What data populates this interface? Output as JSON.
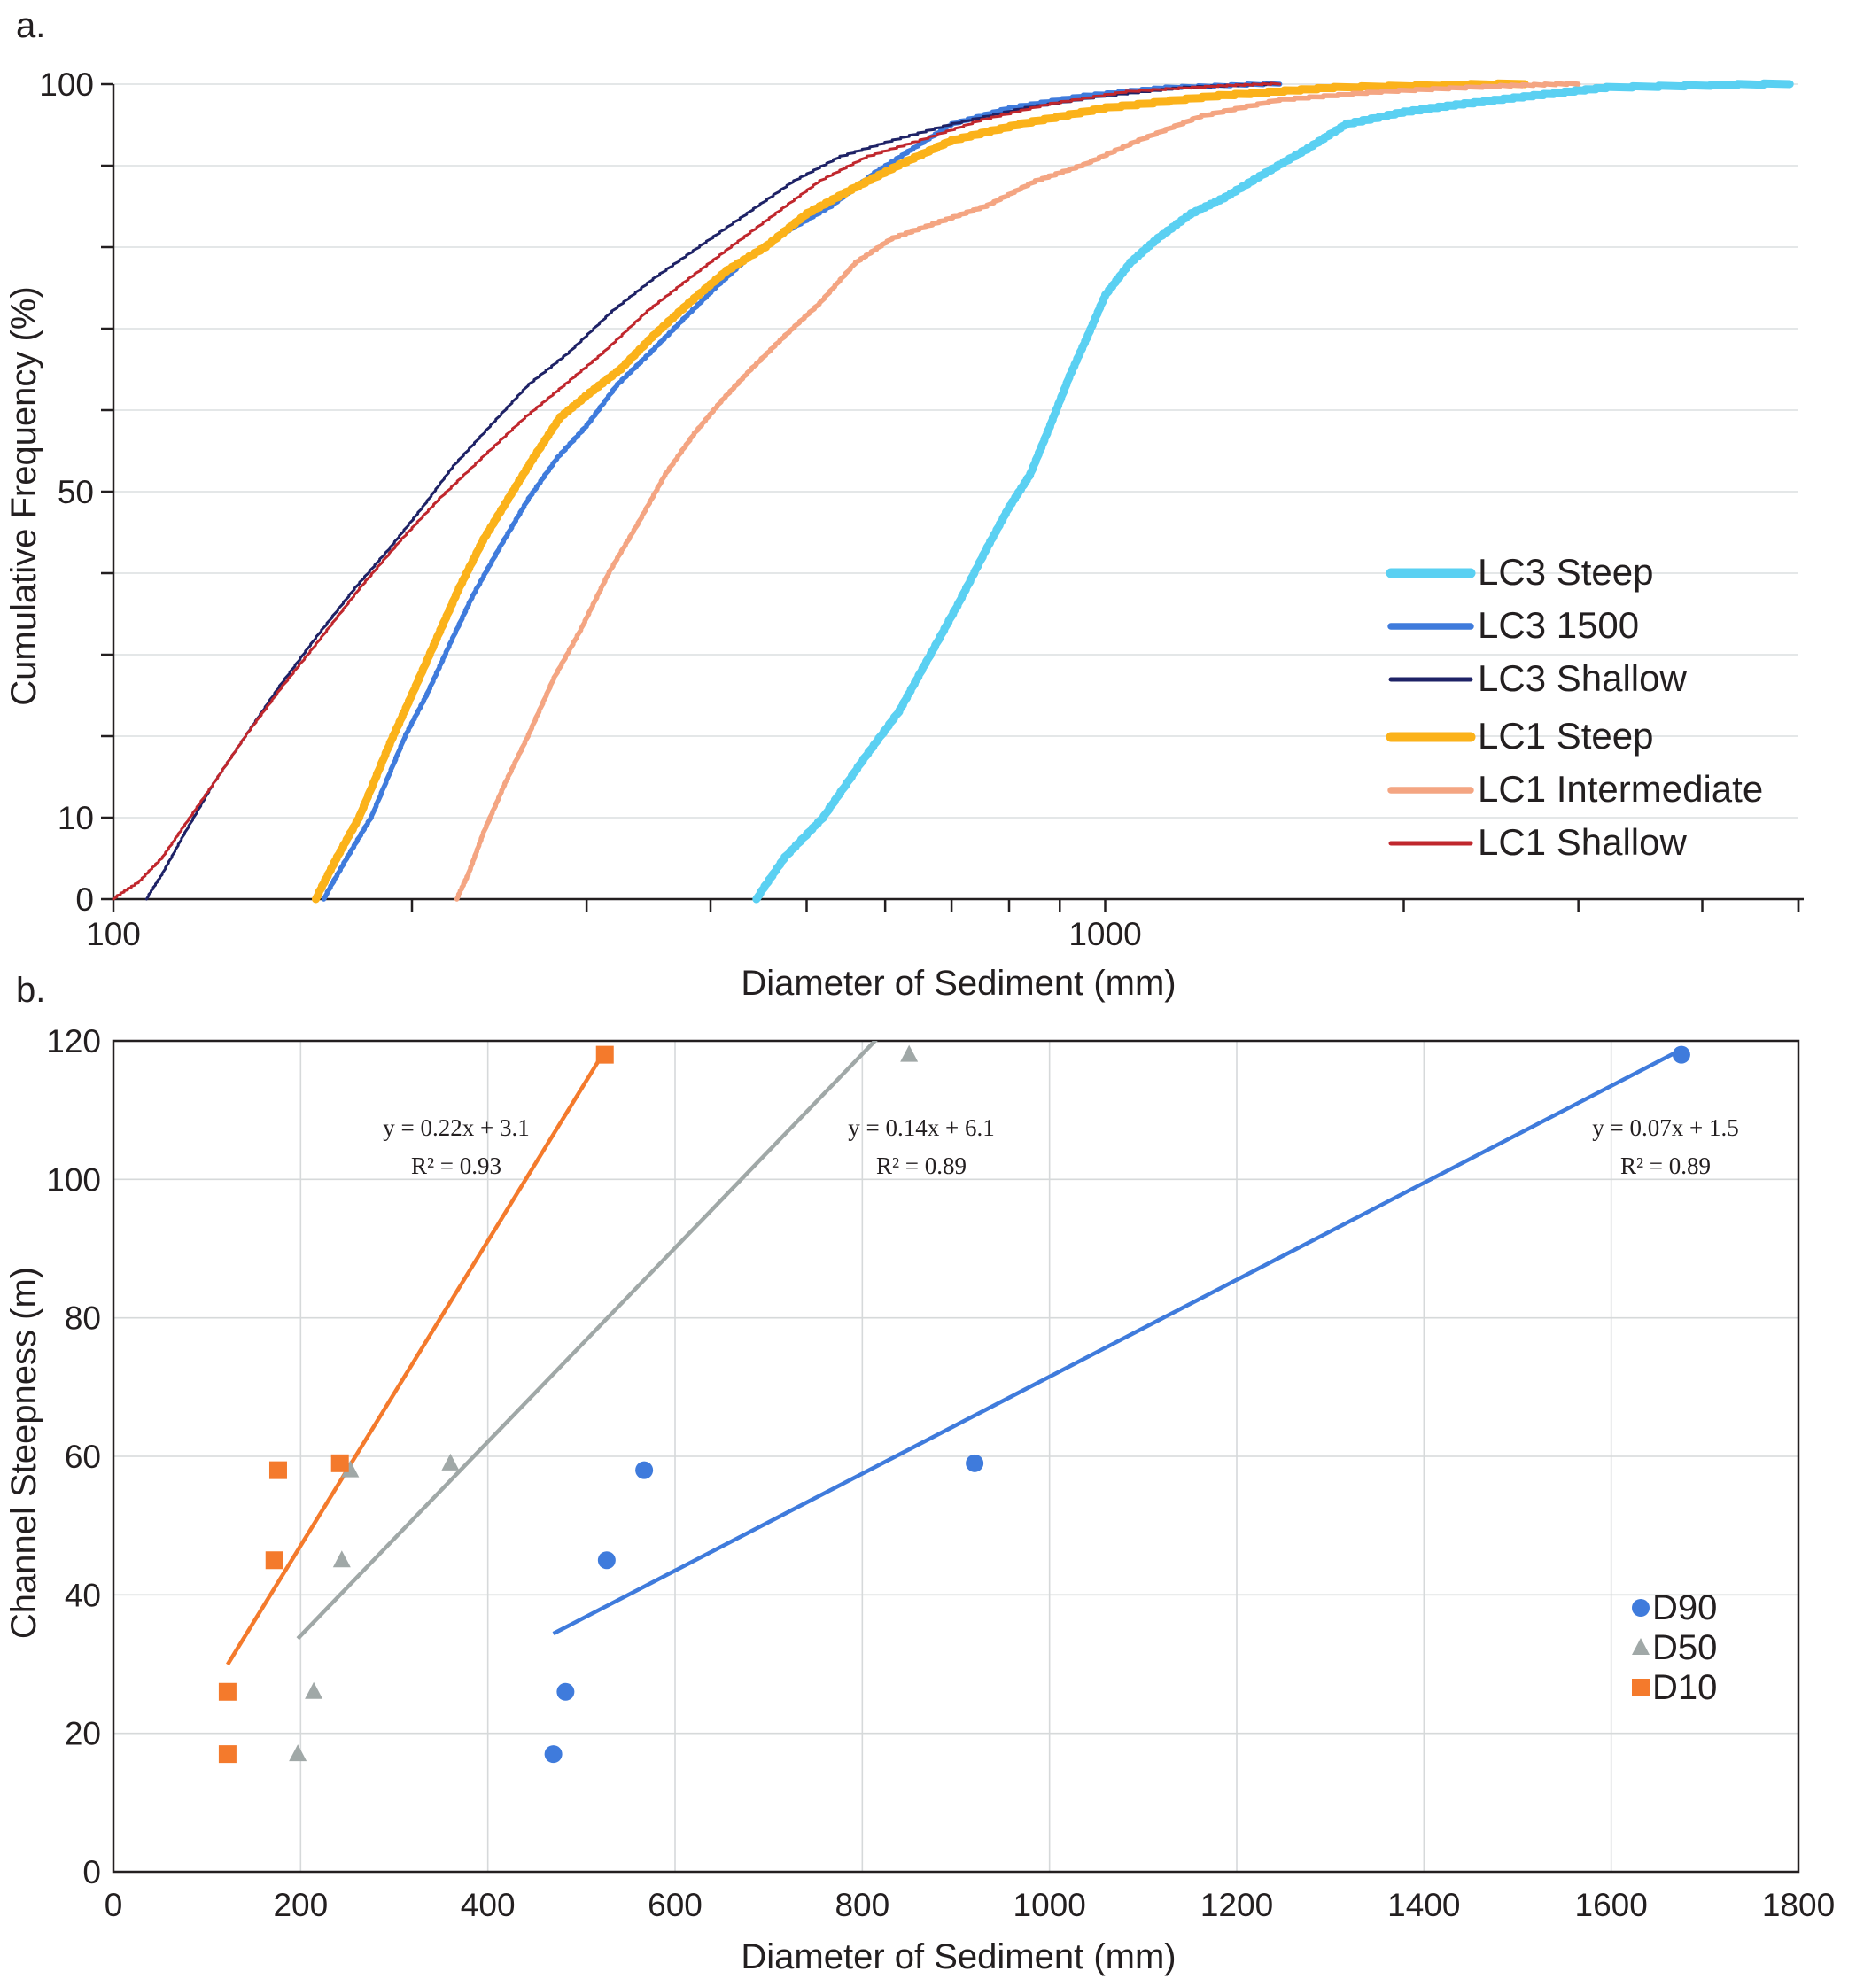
{
  "chart_data": [
    {
      "panel": "a.",
      "type": "line",
      "xlabel": "Diameter of Sediment (mm)",
      "ylabel": "Cumulative Frequency (%)",
      "xscale": "log",
      "xlim": [
        100,
        5000
      ],
      "ylim": [
        0,
        100
      ],
      "x_tick_labels": [
        "100",
        "1000"
      ],
      "y_tick_labels": [
        "0",
        "10",
        "50",
        "100"
      ],
      "y_minor_ticks": [
        20,
        30,
        40,
        60,
        70,
        80,
        90
      ],
      "grid": true,
      "legend_position": "bottom-right",
      "series": [
        {
          "name": "LC3 Steep",
          "color": "#5ad0f2",
          "width": "thick",
          "points": [
            [
              445,
              0
            ],
            [
              475,
              5
            ],
            [
              520,
              10
            ],
            [
              570,
              17
            ],
            [
              620,
              23
            ],
            [
              660,
              29
            ],
            [
              710,
              36
            ],
            [
              760,
              43
            ],
            [
              800,
              48
            ],
            [
              840,
              52
            ],
            [
              880,
              58
            ],
            [
              920,
              64
            ],
            [
              960,
              69
            ],
            [
              1000,
              74
            ],
            [
              1060,
              78
            ],
            [
              1130,
              81
            ],
            [
              1220,
              84
            ],
            [
              1320,
              86
            ],
            [
              1450,
              89
            ],
            [
              1600,
              92
            ],
            [
              1750,
              95
            ],
            [
              2000,
              96.5
            ],
            [
              2300,
              97.5
            ],
            [
              2700,
              98.5
            ],
            [
              3200,
              99.5
            ],
            [
              4900,
              100
            ]
          ]
        },
        {
          "name": "LC3 1500",
          "color": "#3f7bdc",
          "width": "medium",
          "points": [
            [
              163,
              0
            ],
            [
              172,
              5
            ],
            [
              182,
              10
            ],
            [
              197,
              20
            ],
            [
              207,
              25
            ],
            [
              218,
              31
            ],
            [
              230,
              37
            ],
            [
              245,
              43
            ],
            [
              262,
              49
            ],
            [
              280,
              54
            ],
            [
              300,
              58
            ],
            [
              322,
              63
            ],
            [
              348,
              67
            ],
            [
              375,
              71
            ],
            [
              405,
              75
            ],
            [
              440,
              79
            ],
            [
              480,
              82
            ],
            [
              530,
              85
            ],
            [
              585,
              89
            ],
            [
              640,
              92
            ],
            [
              700,
              95
            ],
            [
              800,
              97
            ],
            [
              950,
              98.5
            ],
            [
              1150,
              99.5
            ],
            [
              1500,
              100
            ]
          ]
        },
        {
          "name": "LC3 Shallow",
          "color": "#1e2266",
          "width": "thin",
          "points": [
            [
              108,
              0
            ],
            [
              112,
              3
            ],
            [
              118,
              8
            ],
            [
              126,
              14
            ],
            [
              136,
              20
            ],
            [
              147,
              26
            ],
            [
              160,
              32
            ],
            [
              175,
              38
            ],
            [
              190,
              43
            ],
            [
              205,
              48
            ],
            [
              220,
              53
            ],
            [
              240,
              58
            ],
            [
              262,
              63
            ],
            [
              288,
              67
            ],
            [
              318,
              72
            ],
            [
              350,
              76
            ],
            [
              390,
              80
            ],
            [
              435,
              84
            ],
            [
              485,
              88
            ],
            [
              540,
              91
            ],
            [
              610,
              93
            ],
            [
              700,
              95
            ],
            [
              830,
              97
            ],
            [
              1000,
              98.5
            ],
            [
              1200,
              99.5
            ],
            [
              1500,
              100
            ]
          ]
        },
        {
          "name": "LC1 Steep",
          "color": "#fbb21a",
          "width": "thick",
          "points": [
            [
              160,
              0
            ],
            [
              168,
              5
            ],
            [
              177,
              10
            ],
            [
              190,
              19
            ],
            [
              200,
              25
            ],
            [
              212,
              32
            ],
            [
              223,
              38
            ],
            [
              236,
              44
            ],
            [
              250,
              49
            ],
            [
              265,
              54
            ],
            [
              282,
              59
            ],
            [
              302,
              62
            ],
            [
              325,
              65
            ],
            [
              350,
              69
            ],
            [
              380,
              73
            ],
            [
              415,
              77
            ],
            [
              455,
              80
            ],
            [
              500,
              84
            ],
            [
              555,
              87
            ],
            [
              620,
              90
            ],
            [
              700,
              93
            ],
            [
              820,
              95
            ],
            [
              1000,
              97
            ],
            [
              1300,
              98.5
            ],
            [
              1700,
              99.5
            ],
            [
              2650,
              100
            ]
          ]
        },
        {
          "name": "LC1 Intermediate",
          "color": "#f4a582",
          "width": "medium",
          "points": [
            [
              222,
              0
            ],
            [
              228,
              3
            ],
            [
              236,
              8
            ],
            [
              248,
              14
            ],
            [
              262,
              20
            ],
            [
              278,
              27
            ],
            [
              296,
              33
            ],
            [
              316,
              40
            ],
            [
              338,
              46
            ],
            [
              360,
              52
            ],
            [
              385,
              57
            ],
            [
              410,
              61
            ],
            [
              440,
              65
            ],
            [
              475,
              69
            ],
            [
              515,
              73
            ],
            [
              560,
              78
            ],
            [
              610,
              81
            ],
            [
              680,
              83
            ],
            [
              760,
              85
            ],
            [
              850,
              88
            ],
            [
              950,
              90
            ],
            [
              1080,
              93
            ],
            [
              1250,
              96
            ],
            [
              1500,
              98
            ],
            [
              1900,
              99
            ],
            [
              2500,
              99.7
            ],
            [
              3000,
              100
            ]
          ]
        },
        {
          "name": "LC1 Shallow",
          "color": "#c0272d",
          "width": "thin",
          "points": [
            [
              100,
              0
            ],
            [
              106,
              2
            ],
            [
              112,
              5
            ],
            [
              118,
              9
            ],
            [
              126,
              14
            ],
            [
              136,
              20
            ],
            [
              148,
              26
            ],
            [
              162,
              32
            ],
            [
              177,
              38
            ],
            [
              195,
              44
            ],
            [
              213,
              49
            ],
            [
              235,
              54
            ],
            [
              260,
              59
            ],
            [
              285,
              63
            ],
            [
              312,
              67
            ],
            [
              345,
              72
            ],
            [
              380,
              76
            ],
            [
              420,
              80
            ],
            [
              465,
              84
            ],
            [
              515,
              88
            ],
            [
              575,
              91
            ],
            [
              650,
              93
            ],
            [
              750,
              95.5
            ],
            [
              880,
              97.5
            ],
            [
              1050,
              99
            ],
            [
              1300,
              99.7
            ],
            [
              1500,
              100
            ]
          ]
        }
      ]
    },
    {
      "panel": "b.",
      "type": "scatter",
      "xlabel": "Diameter of Sediment (mm)",
      "ylabel": "Channel Steepness (m)",
      "xlim": [
        0,
        1800
      ],
      "ylim": [
        0,
        120
      ],
      "x_tick_labels": [
        "0",
        "200",
        "400",
        "600",
        "800",
        "1000",
        "1200",
        "1400",
        "1600",
        "1800"
      ],
      "y_tick_labels": [
        "0",
        "20",
        "40",
        "60",
        "80",
        "100",
        "120"
      ],
      "grid": true,
      "legend_position": "bottom-right",
      "series": [
        {
          "name": "D90",
          "marker": "circle",
          "color": "#3f7bdc",
          "points": [
            [
              470,
              17
            ],
            [
              483,
              26
            ],
            [
              527,
              45
            ],
            [
              567,
              58
            ],
            [
              920,
              59
            ],
            [
              1675,
              118
            ]
          ],
          "fit": {
            "slope": 0.07,
            "intercept": 1.5,
            "label": "y = 0.07x + 1.5",
            "r2_label": "R² = 0.89",
            "x_range": [
              470,
              1675
            ]
          }
        },
        {
          "name": "D50",
          "marker": "triangle",
          "color": "#a0a8a7",
          "points": [
            [
              197,
              17
            ],
            [
              214,
              26
            ],
            [
              244,
              45
            ],
            [
              253,
              58
            ],
            [
              360,
              59
            ],
            [
              850,
              118
            ]
          ],
          "fit": {
            "slope": 0.14,
            "intercept": 6.1,
            "label": "y = 0.14x + 6.1",
            "r2_label": "R² = 0.89",
            "x_range": [
              197,
              850
            ]
          }
        },
        {
          "name": "D10",
          "marker": "square",
          "color": "#f47a2c",
          "points": [
            [
              122,
              17
            ],
            [
              122,
              26
            ],
            [
              172,
              45
            ],
            [
              176,
              58
            ],
            [
              242,
              59
            ],
            [
              525,
              118
            ]
          ],
          "fit": {
            "slope": 0.22,
            "intercept": 3.1,
            "label": "y = 0.22x + 3.1",
            "r2_label": "R² = 0.93",
            "x_range": [
              122,
              525
            ]
          }
        }
      ]
    }
  ]
}
